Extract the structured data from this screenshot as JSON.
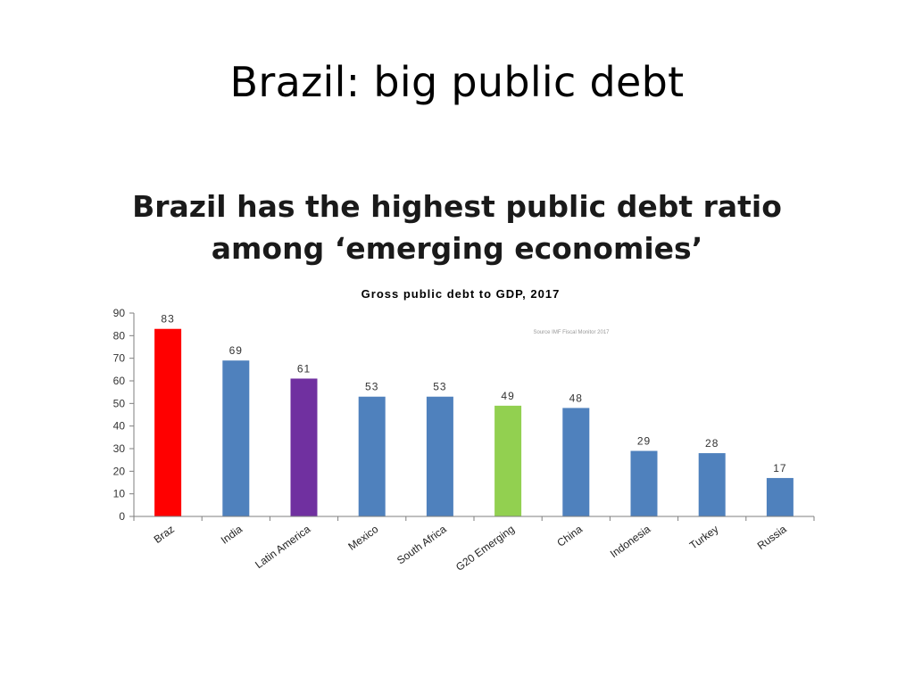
{
  "slide": {
    "title": "Brazil: big public debt"
  },
  "headline": {
    "line1": "Brazil has the highest public debt ratio",
    "line2": "among ‘emerging economies’"
  },
  "chart_data": {
    "type": "bar",
    "title": "Gross public debt to GDP, 2017",
    "source": "Source IMF Fiscal Monitor 2017",
    "categories": [
      "Braz",
      "India",
      "Latin America",
      "Mexico",
      "South Africa",
      "G20 Emerging",
      "China",
      "Indonesia",
      "Turkey",
      "Russia"
    ],
    "values": [
      83,
      69,
      61,
      53,
      53,
      49,
      48,
      29,
      28,
      17
    ],
    "colors": [
      "#ff0000",
      "#4f81bd",
      "#7030a0",
      "#4f81bd",
      "#4f81bd",
      "#92d050",
      "#4f81bd",
      "#4f81bd",
      "#4f81bd",
      "#4f81bd"
    ],
    "xlabel": "",
    "ylabel": "",
    "ylim": [
      0,
      90
    ],
    "yticks": [
      0,
      10,
      20,
      30,
      40,
      50,
      60,
      70,
      80,
      90
    ],
    "grid": false,
    "legend": "none"
  }
}
